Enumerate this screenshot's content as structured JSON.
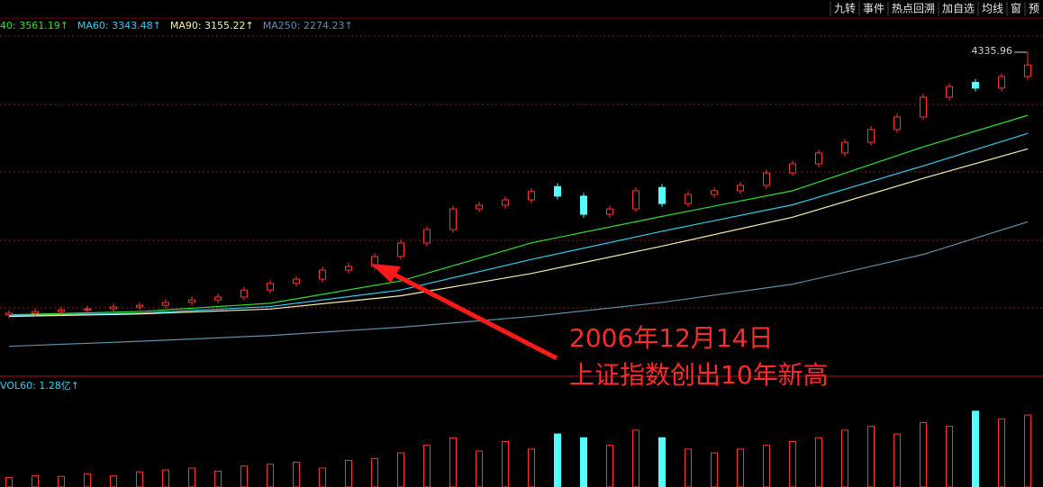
{
  "toolbar": [
    "九转",
    "事件",
    "热点回溯",
    "加自选",
    "均线",
    "窗",
    "预"
  ],
  "chart_data": {
    "type": "candlestick",
    "open": [
      1150,
      1169,
      1190,
      1210,
      1222,
      1245,
      1265,
      1300,
      1330,
      1365,
      1450,
      1530,
      1582,
      1691,
      1735,
      1855,
      2018,
      2180,
      2430,
      2475,
      2540,
      2700,
      2585,
      2365,
      2430,
      2690,
      2495,
      2605,
      2650,
      2715,
      2865,
      2975,
      3106,
      3235,
      3390,
      3541,
      3780,
      3960,
      3890,
      4030
    ],
    "high": [
      1209,
      1230,
      1250,
      1262,
      1285,
      1305,
      1340,
      1370,
      1405,
      1490,
      1570,
      1622,
      1731,
      1775,
      1895,
      2058,
      2220,
      2470,
      2515,
      2580,
      2680,
      2740,
      2625,
      2470,
      2690,
      2730,
      2645,
      2690,
      2755,
      2905,
      3015,
      3146,
      3275,
      3430,
      3581,
      3820,
      3950,
      4000,
      4070,
      4335.96
    ],
    "low": [
      1110,
      1129,
      1150,
      1170,
      1182,
      1205,
      1225,
      1260,
      1290,
      1325,
      1410,
      1490,
      1542,
      1651,
      1695,
      1815,
      1978,
      2140,
      2390,
      2435,
      2500,
      2545,
      2325,
      2325,
      2390,
      2455,
      2455,
      2565,
      2610,
      2675,
      2825,
      2935,
      3066,
      3195,
      3350,
      3501,
      3740,
      3850,
      3850,
      3990
    ],
    "close": [
      1169,
      1190,
      1210,
      1222,
      1245,
      1265,
      1300,
      1330,
      1365,
      1450,
      1530,
      1582,
      1691,
      1735,
      1855,
      2018,
      2180,
      2430,
      2475,
      2540,
      2640,
      2585,
      2365,
      2430,
      2650,
      2495,
      2605,
      2650,
      2715,
      2865,
      2975,
      3106,
      3235,
      3390,
      3541,
      3780,
      3910,
      3890,
      4030,
      4170
    ],
    "ylim": [
      440,
      4520
    ],
    "up_color": "#ff3232",
    "down_color": "#54ffff",
    "ma": {
      "x": [
        0,
        5,
        10,
        15,
        20,
        25,
        30,
        35,
        39
      ],
      "series": [
        {
          "label": "40: 3561.19↑",
          "color": "#33dd33",
          "values": [
            1150,
            1190,
            1290,
            1560,
            2020,
            2340,
            2650,
            3180,
            3561.19
          ]
        },
        {
          "label": "MA60: 3343.48↑",
          "color": "#33ccee",
          "values": [
            1140,
            1170,
            1250,
            1450,
            1820,
            2160,
            2480,
            2950,
            3343.48
          ]
        },
        {
          "label": "MA90: 3155.22↑",
          "color": "#f5f0b0",
          "values": [
            1130,
            1160,
            1220,
            1380,
            1650,
            1980,
            2330,
            2800,
            3155.22
          ]
        },
        {
          "label": "MA250: 2274.23↑",
          "color": "#5f8fa8",
          "values": [
            770,
            830,
            900,
            1000,
            1130,
            1300,
            1520,
            1880,
            2274.23
          ]
        }
      ]
    },
    "volume": {
      "label": "VOL60: 1.28亿↑",
      "ylim": [
        0,
        2.4
      ],
      "values": [
        0.25,
        0.3,
        0.28,
        0.35,
        0.3,
        0.4,
        0.45,
        0.5,
        0.42,
        0.55,
        0.6,
        0.65,
        0.5,
        0.7,
        0.75,
        0.9,
        1.1,
        1.3,
        0.95,
        1.2,
        1.0,
        1.4,
        1.3,
        1.1,
        1.5,
        1.3,
        1.0,
        0.9,
        1.0,
        1.1,
        1.2,
        1.3,
        1.5,
        1.6,
        1.4,
        1.7,
        1.6,
        2.0,
        1.8,
        1.9
      ]
    },
    "annotation": [
      "2006年12月14日",
      "上证指数创出10年新高"
    ]
  }
}
